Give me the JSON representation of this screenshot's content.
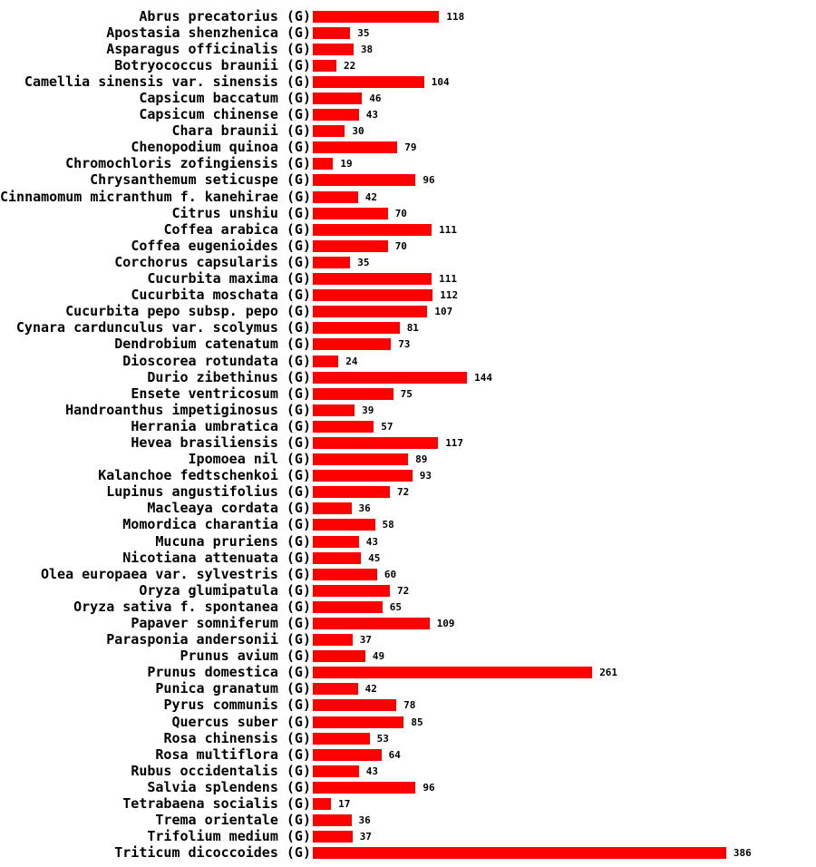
{
  "chart_data": {
    "type": "bar",
    "orientation": "horizontal",
    "title": "",
    "xlabel": "",
    "ylabel": "",
    "xlim": [
      0,
      400
    ],
    "grid": false,
    "axes_visible": false,
    "value_labels_visible": true,
    "bar_color": "#ff0000",
    "text_color": "#000000",
    "background_color": "#ffffff",
    "categories": [
      "Abrus precatorius (G)",
      "Apostasia shenzhenica (G)",
      "Asparagus officinalis (G)",
      "Botryococcus braunii (G)",
      "Camellia sinensis var. sinensis (G)",
      "Capsicum baccatum (G)",
      "Capsicum chinense (G)",
      "Chara braunii (G)",
      "Chenopodium quinoa (G)",
      "Chromochloris zofingiensis (G)",
      "Chrysanthemum seticuspe (G)",
      "Cinnamomum micranthum f. kanehirae (G)",
      "Citrus unshiu (G)",
      "Coffea arabica (G)",
      "Coffea eugenioides (G)",
      "Corchorus capsularis (G)",
      "Cucurbita maxima (G)",
      "Cucurbita moschata (G)",
      "Cucurbita pepo subsp. pepo (G)",
      "Cynara cardunculus var. scolymus (G)",
      "Dendrobium catenatum (G)",
      "Dioscorea rotundata (G)",
      "Durio zibethinus (G)",
      "Ensete ventricosum (G)",
      "Handroanthus impetiginosus (G)",
      "Herrania umbratica (G)",
      "Hevea brasiliensis (G)",
      "Ipomoea nil (G)",
      "Kalanchoe fedtschenkoi (G)",
      "Lupinus angustifolius (G)",
      "Macleaya cordata (G)",
      "Momordica charantia (G)",
      "Mucuna pruriens (G)",
      "Nicotiana attenuata (G)",
      "Olea europaea var. sylvestris (G)",
      "Oryza glumipatula (G)",
      "Oryza sativa f. spontanea (G)",
      "Papaver somniferum (G)",
      "Parasponia andersonii (G)",
      "Prunus avium (G)",
      "Prunus domestica (G)",
      "Punica granatum (G)",
      "Pyrus communis (G)",
      "Quercus suber (G)",
      "Rosa chinensis (G)",
      "Rosa multiflora (G)",
      "Rubus occidentalis (G)",
      "Salvia splendens (G)",
      "Tetrabaena socialis (G)",
      "Trema orientale (G)",
      "Trifolium medium (G)",
      "Triticum dicoccoides (G)"
    ],
    "values": [
      118,
      35,
      38,
      22,
      104,
      46,
      43,
      30,
      79,
      19,
      96,
      42,
      70,
      111,
      70,
      35,
      111,
      112,
      107,
      81,
      73,
      24,
      144,
      75,
      39,
      57,
      117,
      89,
      93,
      72,
      36,
      58,
      43,
      45,
      60,
      72,
      65,
      109,
      37,
      49,
      261,
      42,
      78,
      85,
      53,
      64,
      43,
      96,
      17,
      36,
      37,
      386
    ]
  }
}
